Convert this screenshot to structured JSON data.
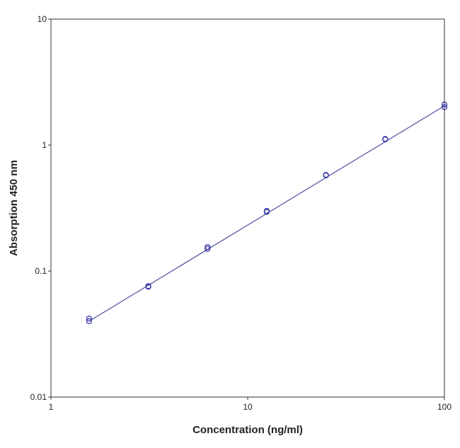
{
  "chart_data": {
    "type": "scatter",
    "xlabel": "Concentration (ng/ml)",
    "ylabel": "Absorption 450 nm",
    "x": [
      1.5625,
      1.5625,
      3.125,
      3.125,
      6.25,
      6.25,
      12.5,
      12.5,
      25,
      25,
      50,
      50,
      100,
      100
    ],
    "series": [
      {
        "color": "#3a3aa8",
        "values": [
          0.042,
          0.04,
          0.076,
          0.075,
          0.155,
          0.15,
          0.3,
          0.295,
          0.58,
          0.575,
          1.12,
          1.11,
          2.1,
          2.0
        ]
      }
    ],
    "fit_line": {
      "color": "#5a5aa8",
      "x": [
        1.5625,
        100
      ],
      "values": [
        0.04,
        2.05
      ]
    },
    "xlim": [
      1,
      100
    ],
    "ylim": [
      0.01,
      10
    ],
    "xticks": [
      1,
      10,
      100
    ],
    "yticks": [
      0.01,
      0.1,
      1,
      10
    ],
    "log_x": true,
    "log_y": true,
    "grid": false
  }
}
